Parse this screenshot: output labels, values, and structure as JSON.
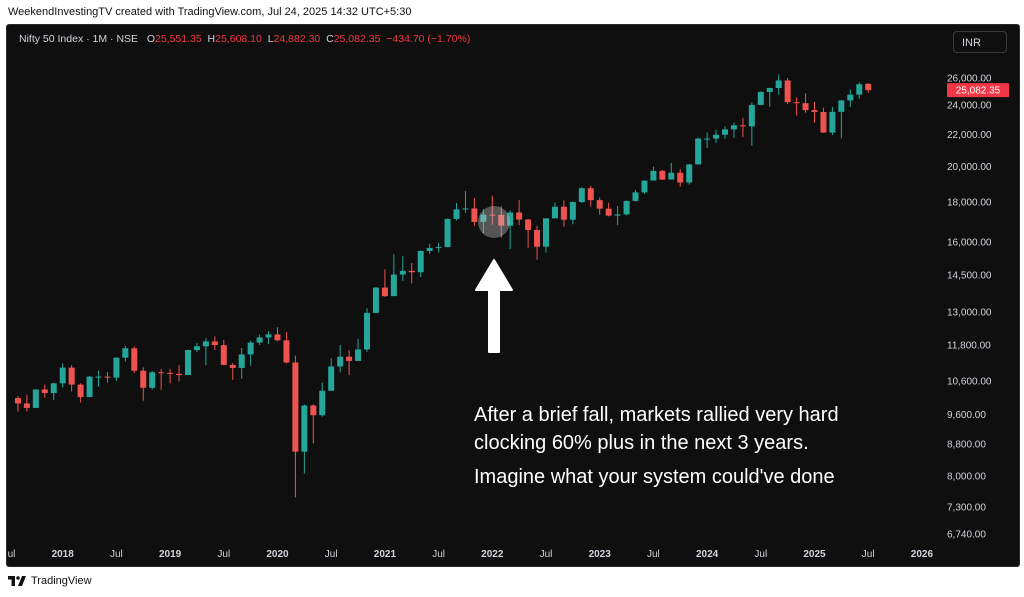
{
  "top_caption": "WeekendInvestingTV created with TradingView.com, Jul 24, 2025 14:32 UTC+5:30",
  "legend": {
    "symbol": "Nifty 50 Index · 1M · NSE",
    "open_label": "O",
    "open": "25,551.35",
    "high_label": "H",
    "high": "25,608.10",
    "low_label": "L",
    "low": "24,882.30",
    "close_label": "C",
    "close": "25,082.35",
    "change": "−434.70 (−1.70%)"
  },
  "currency_button": "INR",
  "price_badge": "25,082.35",
  "annotation": {
    "line1": "After a brief fall, markets rallied very hard",
    "line2": "clocking 60% plus in the next 3 years.",
    "line3": "Imagine what your system could've done"
  },
  "footer": {
    "logo_icon": "tradingview-logo-icon",
    "brand": "TradingView"
  },
  "colors": {
    "up": "#26a69a",
    "down": "#ef5350",
    "background": "#0f0f0f",
    "axis_text": "#d1d4dc",
    "badge": "#f23645"
  },
  "chart_data": {
    "type": "candlestick",
    "scale": "log",
    "y_ticks": [
      "26,000.00",
      "24,000.00",
      "22,000.00",
      "20,000.00",
      "18,000.00",
      "16,000.00",
      "14,500.00",
      "13,000.00",
      "11,800.00",
      "10,600.00",
      "9,600.00",
      "8,800.00",
      "8,000.00",
      "7,300.00",
      "6,740.00"
    ],
    "y_tick_values": [
      26000,
      24000,
      22000,
      20000,
      18000,
      16000,
      14500,
      13000,
      11800,
      10600,
      9600,
      8800,
      8000,
      7300,
      6740
    ],
    "x_ticks": [
      {
        "label": "Jul",
        "year": false,
        "date": "2017-07"
      },
      {
        "label": "2018",
        "year": true,
        "date": "2018-01"
      },
      {
        "label": "Jul",
        "year": false,
        "date": "2018-07"
      },
      {
        "label": "2019",
        "year": true,
        "date": "2019-01"
      },
      {
        "label": "Jul",
        "year": false,
        "date": "2019-07"
      },
      {
        "label": "2020",
        "year": true,
        "date": "2020-01"
      },
      {
        "label": "Jul",
        "year": false,
        "date": "2020-07"
      },
      {
        "label": "2021",
        "year": true,
        "date": "2021-01"
      },
      {
        "label": "Jul",
        "year": false,
        "date": "2021-07"
      },
      {
        "label": "2022",
        "year": true,
        "date": "2022-01"
      },
      {
        "label": "Jul",
        "year": false,
        "date": "2022-07"
      },
      {
        "label": "2023",
        "year": true,
        "date": "2023-01"
      },
      {
        "label": "Jul",
        "year": false,
        "date": "2023-07"
      },
      {
        "label": "2024",
        "year": true,
        "date": "2024-01"
      },
      {
        "label": "Jul",
        "year": false,
        "date": "2024-07"
      },
      {
        "label": "2025",
        "year": true,
        "date": "2025-01"
      },
      {
        "label": "Jul",
        "year": false,
        "date": "2025-07"
      },
      {
        "label": "2026",
        "year": true,
        "date": "2026-01"
      }
    ],
    "candles": [
      {
        "date": "2017-08",
        "o": 10080,
        "h": 10140,
        "l": 9680,
        "c": 9920
      },
      {
        "date": "2017-09",
        "o": 9920,
        "h": 10180,
        "l": 9690,
        "c": 9790
      },
      {
        "date": "2017-10",
        "o": 9790,
        "h": 10340,
        "l": 9790,
        "c": 10340
      },
      {
        "date": "2017-11",
        "o": 10340,
        "h": 10490,
        "l": 10090,
        "c": 10230
      },
      {
        "date": "2017-12",
        "o": 10230,
        "h": 10550,
        "l": 10030,
        "c": 10530
      },
      {
        "date": "2018-01",
        "o": 10530,
        "h": 11170,
        "l": 10400,
        "c": 11030
      },
      {
        "date": "2018-02",
        "o": 11030,
        "h": 11110,
        "l": 10280,
        "c": 10490
      },
      {
        "date": "2018-03",
        "o": 10490,
        "h": 10530,
        "l": 9950,
        "c": 10110
      },
      {
        "date": "2018-04",
        "o": 10110,
        "h": 10760,
        "l": 10110,
        "c": 10740
      },
      {
        "date": "2018-05",
        "o": 10740,
        "h": 10930,
        "l": 10420,
        "c": 10740
      },
      {
        "date": "2018-06",
        "o": 10740,
        "h": 10890,
        "l": 10550,
        "c": 10710
      },
      {
        "date": "2018-07",
        "o": 10710,
        "h": 11370,
        "l": 10600,
        "c": 11360
      },
      {
        "date": "2018-08",
        "o": 11360,
        "h": 11760,
        "l": 11230,
        "c": 11680
      },
      {
        "date": "2018-09",
        "o": 11680,
        "h": 11750,
        "l": 10860,
        "c": 10930
      },
      {
        "date": "2018-10",
        "o": 10930,
        "h": 11040,
        "l": 10000,
        "c": 10390
      },
      {
        "date": "2018-11",
        "o": 10390,
        "h": 10920,
        "l": 10340,
        "c": 10880
      },
      {
        "date": "2018-12",
        "o": 10880,
        "h": 10990,
        "l": 10330,
        "c": 10860
      },
      {
        "date": "2019-01",
        "o": 10860,
        "h": 10990,
        "l": 10530,
        "c": 10830
      },
      {
        "date": "2019-02",
        "o": 10830,
        "h": 11120,
        "l": 10590,
        "c": 10790
      },
      {
        "date": "2019-03",
        "o": 10790,
        "h": 11630,
        "l": 10820,
        "c": 11620
      },
      {
        "date": "2019-04",
        "o": 11620,
        "h": 11860,
        "l": 11550,
        "c": 11750
      },
      {
        "date": "2019-05",
        "o": 11750,
        "h": 12040,
        "l": 11110,
        "c": 11920
      },
      {
        "date": "2019-06",
        "o": 11920,
        "h": 12100,
        "l": 11620,
        "c": 11790
      },
      {
        "date": "2019-07",
        "o": 11790,
        "h": 11980,
        "l": 11110,
        "c": 11120
      },
      {
        "date": "2019-08",
        "o": 11120,
        "h": 11180,
        "l": 10640,
        "c": 11020
      },
      {
        "date": "2019-09",
        "o": 11020,
        "h": 11690,
        "l": 10670,
        "c": 11470
      },
      {
        "date": "2019-10",
        "o": 11470,
        "h": 11940,
        "l": 11090,
        "c": 11880
      },
      {
        "date": "2019-11",
        "o": 11880,
        "h": 12160,
        "l": 11800,
        "c": 12060
      },
      {
        "date": "2019-12",
        "o": 12060,
        "h": 12290,
        "l": 11830,
        "c": 12170
      },
      {
        "date": "2020-01",
        "o": 12170,
        "h": 12430,
        "l": 11930,
        "c": 11960
      },
      {
        "date": "2020-02",
        "o": 11960,
        "h": 12250,
        "l": 11170,
        "c": 11200
      },
      {
        "date": "2020-03",
        "o": 11200,
        "h": 11430,
        "l": 7510,
        "c": 8600
      },
      {
        "date": "2020-04",
        "o": 8600,
        "h": 9890,
        "l": 8060,
        "c": 9860
      },
      {
        "date": "2020-05",
        "o": 9860,
        "h": 9890,
        "l": 8810,
        "c": 9580
      },
      {
        "date": "2020-06",
        "o": 9580,
        "h": 10550,
        "l": 9540,
        "c": 10300
      },
      {
        "date": "2020-07",
        "o": 10300,
        "h": 11340,
        "l": 10300,
        "c": 11070
      },
      {
        "date": "2020-08",
        "o": 11070,
        "h": 11800,
        "l": 10880,
        "c": 11390
      },
      {
        "date": "2020-09",
        "o": 11390,
        "h": 11620,
        "l": 10790,
        "c": 11250
      },
      {
        "date": "2020-10",
        "o": 11250,
        "h": 12020,
        "l": 11350,
        "c": 11640
      },
      {
        "date": "2020-11",
        "o": 11640,
        "h": 13150,
        "l": 11560,
        "c": 12970
      },
      {
        "date": "2020-12",
        "o": 12970,
        "h": 14000,
        "l": 12960,
        "c": 13980
      },
      {
        "date": "2021-01",
        "o": 13980,
        "h": 14750,
        "l": 13600,
        "c": 13630
      },
      {
        "date": "2021-02",
        "o": 13630,
        "h": 15430,
        "l": 13660,
        "c": 14530
      },
      {
        "date": "2021-03",
        "o": 14530,
        "h": 15340,
        "l": 14260,
        "c": 14690
      },
      {
        "date": "2021-04",
        "o": 14690,
        "h": 15040,
        "l": 14150,
        "c": 14630
      },
      {
        "date": "2021-05",
        "o": 14630,
        "h": 15610,
        "l": 14420,
        "c": 15580
      },
      {
        "date": "2021-06",
        "o": 15580,
        "h": 15920,
        "l": 15450,
        "c": 15720
      },
      {
        "date": "2021-07",
        "o": 15720,
        "h": 15960,
        "l": 15510,
        "c": 15760
      },
      {
        "date": "2021-08",
        "o": 15760,
        "h": 17150,
        "l": 15830,
        "c": 17130
      },
      {
        "date": "2021-09",
        "o": 17130,
        "h": 17950,
        "l": 17060,
        "c": 17620
      },
      {
        "date": "2021-10",
        "o": 17620,
        "h": 18600,
        "l": 17450,
        "c": 17670
      },
      {
        "date": "2021-11",
        "o": 17670,
        "h": 18210,
        "l": 16780,
        "c": 16980
      },
      {
        "date": "2021-12",
        "o": 16980,
        "h": 17640,
        "l": 16410,
        "c": 17350
      },
      {
        "date": "2022-01",
        "o": 17350,
        "h": 18350,
        "l": 16840,
        "c": 17340
      },
      {
        "date": "2022-02",
        "o": 17340,
        "h": 17790,
        "l": 16200,
        "c": 16790
      },
      {
        "date": "2022-03",
        "o": 16790,
        "h": 17560,
        "l": 15670,
        "c": 17460
      },
      {
        "date": "2022-04",
        "o": 17460,
        "h": 18110,
        "l": 16820,
        "c": 17100
      },
      {
        "date": "2022-05",
        "o": 17100,
        "h": 17130,
        "l": 15730,
        "c": 16580
      },
      {
        "date": "2022-06",
        "o": 16580,
        "h": 16790,
        "l": 15180,
        "c": 15780
      },
      {
        "date": "2022-07",
        "o": 15780,
        "h": 17170,
        "l": 15510,
        "c": 17160
      },
      {
        "date": "2022-08",
        "o": 17160,
        "h": 17990,
        "l": 17160,
        "c": 17760
      },
      {
        "date": "2022-09",
        "o": 17760,
        "h": 18100,
        "l": 16750,
        "c": 17090
      },
      {
        "date": "2022-10",
        "o": 17090,
        "h": 18030,
        "l": 16860,
        "c": 18010
      },
      {
        "date": "2022-11",
        "o": 18010,
        "h": 18820,
        "l": 17960,
        "c": 18760
      },
      {
        "date": "2022-12",
        "o": 18760,
        "h": 18890,
        "l": 17770,
        "c": 18110
      },
      {
        "date": "2023-01",
        "o": 18110,
        "h": 18250,
        "l": 17350,
        "c": 17660
      },
      {
        "date": "2023-02",
        "o": 17660,
        "h": 17970,
        "l": 17260,
        "c": 17300
      },
      {
        "date": "2023-03",
        "o": 17300,
        "h": 17800,
        "l": 16830,
        "c": 17360
      },
      {
        "date": "2023-04",
        "o": 17360,
        "h": 18090,
        "l": 17310,
        "c": 18070
      },
      {
        "date": "2023-05",
        "o": 18070,
        "h": 18660,
        "l": 18040,
        "c": 18530
      },
      {
        "date": "2023-06",
        "o": 18530,
        "h": 19200,
        "l": 18460,
        "c": 19190
      },
      {
        "date": "2023-07",
        "o": 19190,
        "h": 19990,
        "l": 19230,
        "c": 19750
      },
      {
        "date": "2023-08",
        "o": 19750,
        "h": 19800,
        "l": 19220,
        "c": 19250
      },
      {
        "date": "2023-09",
        "o": 19250,
        "h": 20220,
        "l": 19260,
        "c": 19640
      },
      {
        "date": "2023-10",
        "o": 19640,
        "h": 19850,
        "l": 18840,
        "c": 19080
      },
      {
        "date": "2023-11",
        "o": 19080,
        "h": 20160,
        "l": 18970,
        "c": 20130
      },
      {
        "date": "2023-12",
        "o": 20130,
        "h": 21800,
        "l": 20180,
        "c": 21730
      },
      {
        "date": "2024-01",
        "o": 21730,
        "h": 22130,
        "l": 21140,
        "c": 21730
      },
      {
        "date": "2024-02",
        "o": 21730,
        "h": 22300,
        "l": 21450,
        "c": 21980
      },
      {
        "date": "2024-03",
        "o": 21980,
        "h": 22530,
        "l": 21710,
        "c": 22330
      },
      {
        "date": "2024-04",
        "o": 22330,
        "h": 22790,
        "l": 21780,
        "c": 22600
      },
      {
        "date": "2024-05",
        "o": 22600,
        "h": 23110,
        "l": 21820,
        "c": 22530
      },
      {
        "date": "2024-06",
        "o": 22530,
        "h": 24170,
        "l": 21280,
        "c": 24010
      },
      {
        "date": "2024-07",
        "o": 24010,
        "h": 24990,
        "l": 23990,
        "c": 24950
      },
      {
        "date": "2024-08",
        "o": 24950,
        "h": 25270,
        "l": 23890,
        "c": 25240
      },
      {
        "date": "2024-09",
        "o": 25240,
        "h": 26280,
        "l": 24750,
        "c": 25810
      },
      {
        "date": "2024-10",
        "o": 25810,
        "h": 26000,
        "l": 24070,
        "c": 24210
      },
      {
        "date": "2024-11",
        "o": 24210,
        "h": 24540,
        "l": 23260,
        "c": 24130
      },
      {
        "date": "2024-12",
        "o": 24130,
        "h": 24860,
        "l": 23460,
        "c": 23640
      },
      {
        "date": "2025-01",
        "o": 23640,
        "h": 24230,
        "l": 22790,
        "c": 23510
      },
      {
        "date": "2025-02",
        "o": 23510,
        "h": 23810,
        "l": 22100,
        "c": 22120
      },
      {
        "date": "2025-03",
        "o": 22120,
        "h": 23870,
        "l": 21960,
        "c": 23520
      },
      {
        "date": "2025-04",
        "o": 23520,
        "h": 24360,
        "l": 21740,
        "c": 24330
      },
      {
        "date": "2025-05",
        "o": 24330,
        "h": 25120,
        "l": 23850,
        "c": 24750
      },
      {
        "date": "2025-06",
        "o": 24750,
        "h": 25670,
        "l": 24470,
        "c": 25520
      },
      {
        "date": "2025-07",
        "o": 25551.35,
        "h": 25608.1,
        "l": 24882.3,
        "c": 25082.35
      }
    ]
  }
}
